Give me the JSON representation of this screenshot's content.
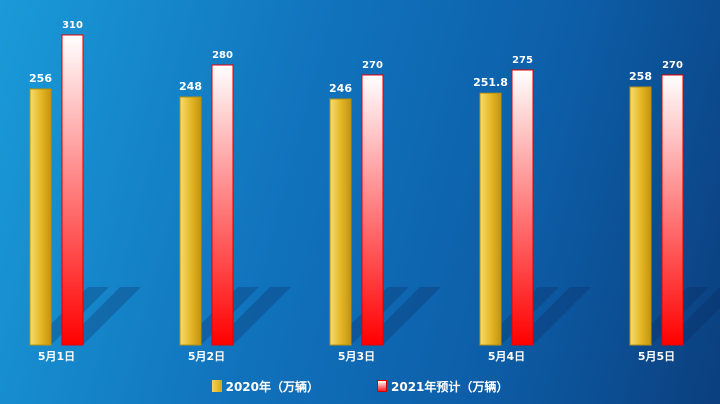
{
  "chart_data": {
    "type": "bar",
    "categories": [
      "5月1日",
      "5月2日",
      "5月3日",
      "5月4日",
      "5月5日"
    ],
    "series": [
      {
        "name": "2020年（万辆）",
        "values": [
          256,
          248,
          246,
          251.8,
          258
        ],
        "labels": [
          "256",
          "248",
          "246",
          "251.8",
          "258"
        ],
        "color": "#e0b31f"
      },
      {
        "name": "2021年预计（万辆）",
        "values": [
          310,
          280,
          270,
          275,
          270
        ],
        "labels": [
          "310",
          "280",
          "270",
          "275",
          "270"
        ],
        "color": "#ff1a1a"
      }
    ],
    "title": "",
    "xlabel": "",
    "ylabel": "",
    "ylim": [
      0,
      320
    ],
    "grid": false,
    "legend_position": "bottom"
  }
}
